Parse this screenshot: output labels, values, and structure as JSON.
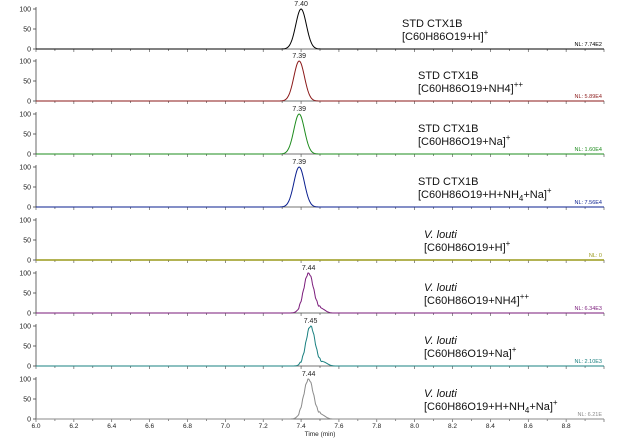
{
  "chart_data": {
    "type": "line",
    "x_axis": {
      "label": "Time (min)",
      "range": [
        6.0,
        9.0
      ],
      "ticks": [
        "6.0",
        "6.2",
        "6.4",
        "6.6",
        "6.8",
        "7.0",
        "7.2",
        "7.4",
        "7.6",
        "7.8",
        "8.0",
        "8.2",
        "8.4",
        "8.6",
        "8.8"
      ]
    },
    "y_axis": {
      "range": [
        0,
        100
      ],
      "ticks": [
        "0",
        "50",
        "100"
      ]
    },
    "panels": [
      {
        "apex_label": "7.40",
        "rt": 7.4,
        "width": 0.028,
        "tail": false,
        "sample": "STD CTX1B",
        "italic": false,
        "formula": "[C60H86O19+H]",
        "formula_sub": "",
        "formula_end": "",
        "sup": "+",
        "nl": "NL: 7.74E2",
        "color": "#000000"
      },
      {
        "apex_label": "7.39",
        "rt": 7.39,
        "width": 0.028,
        "tail": false,
        "sample": "STD CTX1B",
        "italic": false,
        "formula": "[C60H86O19+NH4",
        "formula_sub": "",
        "formula_end": "]",
        "sup": "+",
        "sup2": "+",
        "nl": "NL: 5.89E4",
        "color": "#8b1a1a"
      },
      {
        "apex_label": "7.39",
        "rt": 7.39,
        "width": 0.028,
        "tail": false,
        "sample": "STD CTX1B",
        "italic": false,
        "formula": "[C60H86O19+Na]",
        "formula_sub": "",
        "formula_end": "",
        "sup": "+",
        "nl": "NL: 1.60E4",
        "color": "#1e8c1e"
      },
      {
        "apex_label": "7.39",
        "rt": 7.39,
        "width": 0.028,
        "tail": false,
        "sample": "STD CTX1B",
        "italic": false,
        "formula": "[C60H86O19+H+NH",
        "formula_sub": "4",
        "formula_end": "+Na]",
        "sup": "+",
        "nl": "NL: 7.56E4",
        "color": "#0a1f8f"
      },
      {
        "apex_label": "",
        "rt": null,
        "width": 0,
        "tail": false,
        "sample": "V. louti",
        "italic": true,
        "formula": "[C60H86O19+H]",
        "formula_sub": "",
        "formula_end": "",
        "sup": "+",
        "nl": "NL: 0",
        "color": "#9a9a1a"
      },
      {
        "apex_label": "7.44",
        "rt": 7.44,
        "width": 0.026,
        "tail": true,
        "sample": "V. louti",
        "italic": true,
        "formula": "[C60H86O19+NH4",
        "formula_sub": "",
        "formula_end": "]",
        "sup": "+",
        "sup2": "+",
        "nl": "NL: 6.34E3",
        "color": "#7a1a7a"
      },
      {
        "apex_label": "7.45",
        "rt": 7.45,
        "width": 0.024,
        "tail": true,
        "sample": "V. louti",
        "italic": true,
        "formula": "[C60H86O19+Na]",
        "formula_sub": "",
        "formula_end": "",
        "sup": "+",
        "nl": "NL: 2.10E3",
        "color": "#1a8080"
      },
      {
        "apex_label": "7.44",
        "rt": 7.44,
        "width": 0.026,
        "tail": true,
        "sample": "V. louti",
        "italic": true,
        "formula": "[C60H86O19+H+NH",
        "formula_sub": "4",
        "formula_end": "+Na]",
        "sup": "+",
        "nl": "NL: 6.21E",
        "color": "#8a8a8a"
      }
    ]
  }
}
